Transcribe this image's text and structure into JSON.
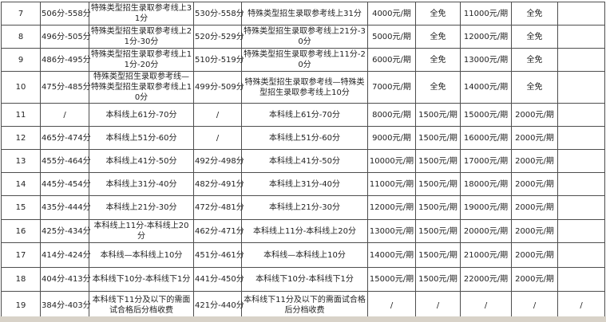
{
  "colors": {
    "background": "#ffffff",
    "border": "#4e4e4e",
    "text": "#222222",
    "bottom_strip": "#d8d2c8"
  },
  "table": {
    "description": "fee schedule by score band, rows 7-19 visible",
    "rows": [
      [
        "7",
        "506分-558分",
        "特殊类型招生录取参考线上31分",
        "530分-558分",
        "特殊类型招生录取参考线上31分",
        "4000元/期",
        "全免",
        "11000元/期",
        "全免",
        ""
      ],
      [
        "8",
        "496分-505分",
        "特殊类型招生录取参考线上21分-30分",
        "520分-529分",
        "特殊类型招生录取参考线上21分-30分",
        "5000元/期",
        "全免",
        "12000元/期",
        "全免",
        ""
      ],
      [
        "9",
        "486分-495分",
        "特殊类型招生录取参考线上11分-20分",
        "510分-519分",
        "特殊类型招生录取参考线上11分-20分",
        "6000元/期",
        "全免",
        "13000元/期",
        "全免",
        ""
      ],
      [
        "10",
        "475分-485分",
        "特殊类型招生录取参考线—特殊类型招生录取参考线上10分",
        "499分-509分",
        "特殊类型招生录取参考线—特殊类型招生录取参考线上10分",
        "7000元/期",
        "全免",
        "14000元/期",
        "全免",
        ""
      ],
      [
        "11",
        "/",
        "本科线上61分-70分",
        "/",
        "本科线上61分-70分",
        "8000元/期",
        "1500元/期",
        "15000元/期",
        "2000元/期",
        ""
      ],
      [
        "12",
        "465分-474分",
        "本科线上51分-60分",
        "/",
        "本科线上51分-60分",
        "9000元/期",
        "1500元/期",
        "16000元/期",
        "2000元/期",
        ""
      ],
      [
        "13",
        "455分-464分",
        "本科线上41分-50分",
        "492分-498分",
        "本科线上41分-50分",
        "10000元/期",
        "1500元/期",
        "17000元/期",
        "2000元/期",
        ""
      ],
      [
        "14",
        "445分-454分",
        "本科线上31分-40分",
        "482分-491分",
        "本科线上31分-40分",
        "11000元/期",
        "1500元/期",
        "18000元/期",
        "2000元/期",
        ""
      ],
      [
        "15",
        "435分-444分",
        "本科线上21分-30分",
        "472分-481分",
        "本科线上21分-30分",
        "12000元/期",
        "1500元/期",
        "19000元/期",
        "2000元/期",
        ""
      ],
      [
        "16",
        "425分-434分",
        "本科线上11分-本科线上20分",
        "462分-471分",
        "本科线上11分-本科线上20分",
        "13000元/期",
        "1500元/期",
        "20000元/期",
        "2000元/期",
        ""
      ],
      [
        "17",
        "414分-424分",
        "本科线—本科线上10分",
        "451分-461分",
        "本科线—本科线上10分",
        "14000元/期",
        "1500元/期",
        "21000元/期",
        "2000元/期",
        ""
      ],
      [
        "18",
        "404分-413分",
        "本科线下10分-本科线下1分",
        "441分-450分",
        "本科线下10分-本科线下1分",
        "15000元/期",
        "1500元/期",
        "22000元/期",
        "2000元/期",
        ""
      ],
      [
        "19",
        "384分-403分",
        "本科线下11分及以下的需面试合格后分档收费",
        "421分-440分",
        "本科线下11分及以下的需面试合格后分档收费",
        "/",
        "/",
        "/",
        "/",
        "/"
      ]
    ]
  }
}
